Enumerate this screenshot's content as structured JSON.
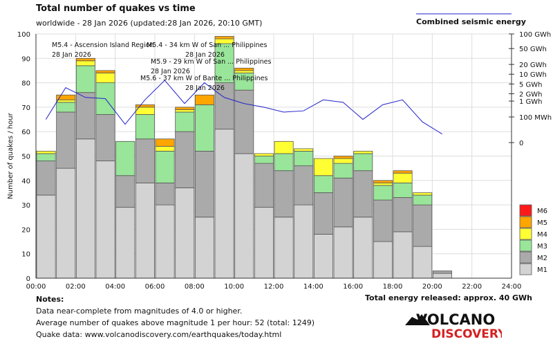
{
  "header": {
    "title": "Total number of quakes vs time",
    "subtitle": "worldwide - 28 Jan 2026 (updated:28 Jan 2026, 20:10 GMT)",
    "energy_legend": "Combined seismic energy"
  },
  "notes": {
    "heading": "Notes:",
    "line1": "Data near-complete from magnitudes of 4.0 or higher.",
    "line2": "Average number of quakes above magnitude 1 per hour: 52 (total: 1249)",
    "line3": "Quake data: www.volcanodiscovery.com/earthquakes/today.html"
  },
  "total_energy": "Total energy released: approx. 40 GWh",
  "logo": {
    "word1": "VOLCANO",
    "word2": "DISCOVERY"
  },
  "colors": {
    "M1": "#d3d3d3",
    "M2": "#aaaaaa",
    "M3": "#99e599",
    "M4": "#ffff33",
    "M5": "#ffa500",
    "M6": "#ff1a1a",
    "energy_line": "#2222cc",
    "grid": "#dddddd"
  },
  "chart_data": {
    "type": "bar",
    "stacked": true,
    "title": "Total number of quakes vs time",
    "xlabel": "",
    "ylabel": "Number of quakes / hour",
    "ylim": [
      0,
      100
    ],
    "yticks": [
      0,
      10,
      20,
      30,
      40,
      50,
      60,
      70,
      80,
      90,
      100
    ],
    "xlim": [
      0,
      24
    ],
    "xticks": [
      "00:00",
      "02:00",
      "04:00",
      "06:00",
      "08:00",
      "10:00",
      "12:00",
      "14:00",
      "16:00",
      "18:00",
      "20:00",
      "22:00",
      "24:00"
    ],
    "hours": [
      0,
      1,
      2,
      3,
      4,
      5,
      6,
      7,
      8,
      9,
      10,
      11,
      12,
      13,
      14,
      15,
      16,
      17,
      18,
      19,
      20
    ],
    "legend": [
      "M6",
      "M5",
      "M4",
      "M3",
      "M2",
      "M1"
    ],
    "series": [
      {
        "name": "M1",
        "values": [
          34,
          45,
          57,
          48,
          29,
          39,
          30,
          37,
          25,
          61,
          51,
          29,
          25,
          30,
          18,
          21,
          25,
          15,
          19,
          13,
          2
        ]
      },
      {
        "name": "M2",
        "values": [
          14,
          23,
          19,
          19,
          13,
          18,
          9,
          23,
          27,
          19,
          26,
          18,
          19,
          16,
          17,
          20,
          19,
          17,
          14,
          17,
          1
        ]
      },
      {
        "name": "M3",
        "values": [
          3,
          4,
          11,
          13,
          14,
          10,
          13,
          8,
          19,
          16,
          7,
          3,
          7,
          6,
          7,
          6,
          7,
          6,
          6,
          4,
          0
        ]
      },
      {
        "name": "M4",
        "values": [
          1,
          1,
          2,
          4,
          0,
          3,
          2,
          1,
          0,
          2,
          1,
          1,
          5,
          1,
          7,
          2,
          1,
          1,
          4,
          1,
          0
        ]
      },
      {
        "name": "M5",
        "values": [
          0,
          2,
          1,
          1,
          0,
          1,
          3,
          1,
          4,
          1,
          1,
          0,
          0,
          0,
          0,
          1,
          0,
          1,
          1,
          0,
          0
        ]
      },
      {
        "name": "M6",
        "values": [
          0,
          0,
          0,
          0,
          0,
          0,
          0,
          0,
          0,
          0,
          0,
          0,
          0,
          0,
          0,
          0,
          0,
          0,
          0,
          0,
          0
        ]
      }
    ],
    "energy_axis": {
      "ticks": [
        "100 GWh",
        "50 GWh",
        "20 GWh",
        "10 GWh",
        "5 GWh",
        "2 GWh",
        "1 GWh",
        "100 MWh",
        "0"
      ],
      "tick_levels_pct": [
        100,
        94,
        87.5,
        83.5,
        79.5,
        75.5,
        72.5,
        66,
        55.5
      ]
    },
    "energy_series": {
      "name": "Combined seismic energy",
      "hours": [
        0.5,
        1.5,
        2.5,
        3.5,
        4.5,
        5.5,
        6.5,
        7.5,
        8.5,
        9.5,
        10.5,
        11.5,
        12.5,
        13.5,
        14.5,
        15.5,
        16.5,
        17.5,
        18.5,
        19.5,
        20.5
      ],
      "levels_pct": [
        65,
        78,
        74,
        73.5,
        63,
        73,
        81,
        71.5,
        80,
        74,
        71.5,
        70,
        68,
        68.5,
        73,
        72,
        65,
        71,
        73,
        64,
        59
      ]
    },
    "annotations": [
      {
        "text": "M5.4 - Ascension Island Region",
        "date": "28 Jan 2026"
      },
      {
        "text": "M5.4 - 34 km W of San ... Philippines",
        "date": "28 Jan 2026"
      },
      {
        "text": "M5.9 - 29 km W of San ... Philippines",
        "date": "28 Jan 2026"
      },
      {
        "text": "M5.6 - 37 km W of Bante ... Philippines",
        "date": "28 Jan 2026"
      }
    ]
  }
}
